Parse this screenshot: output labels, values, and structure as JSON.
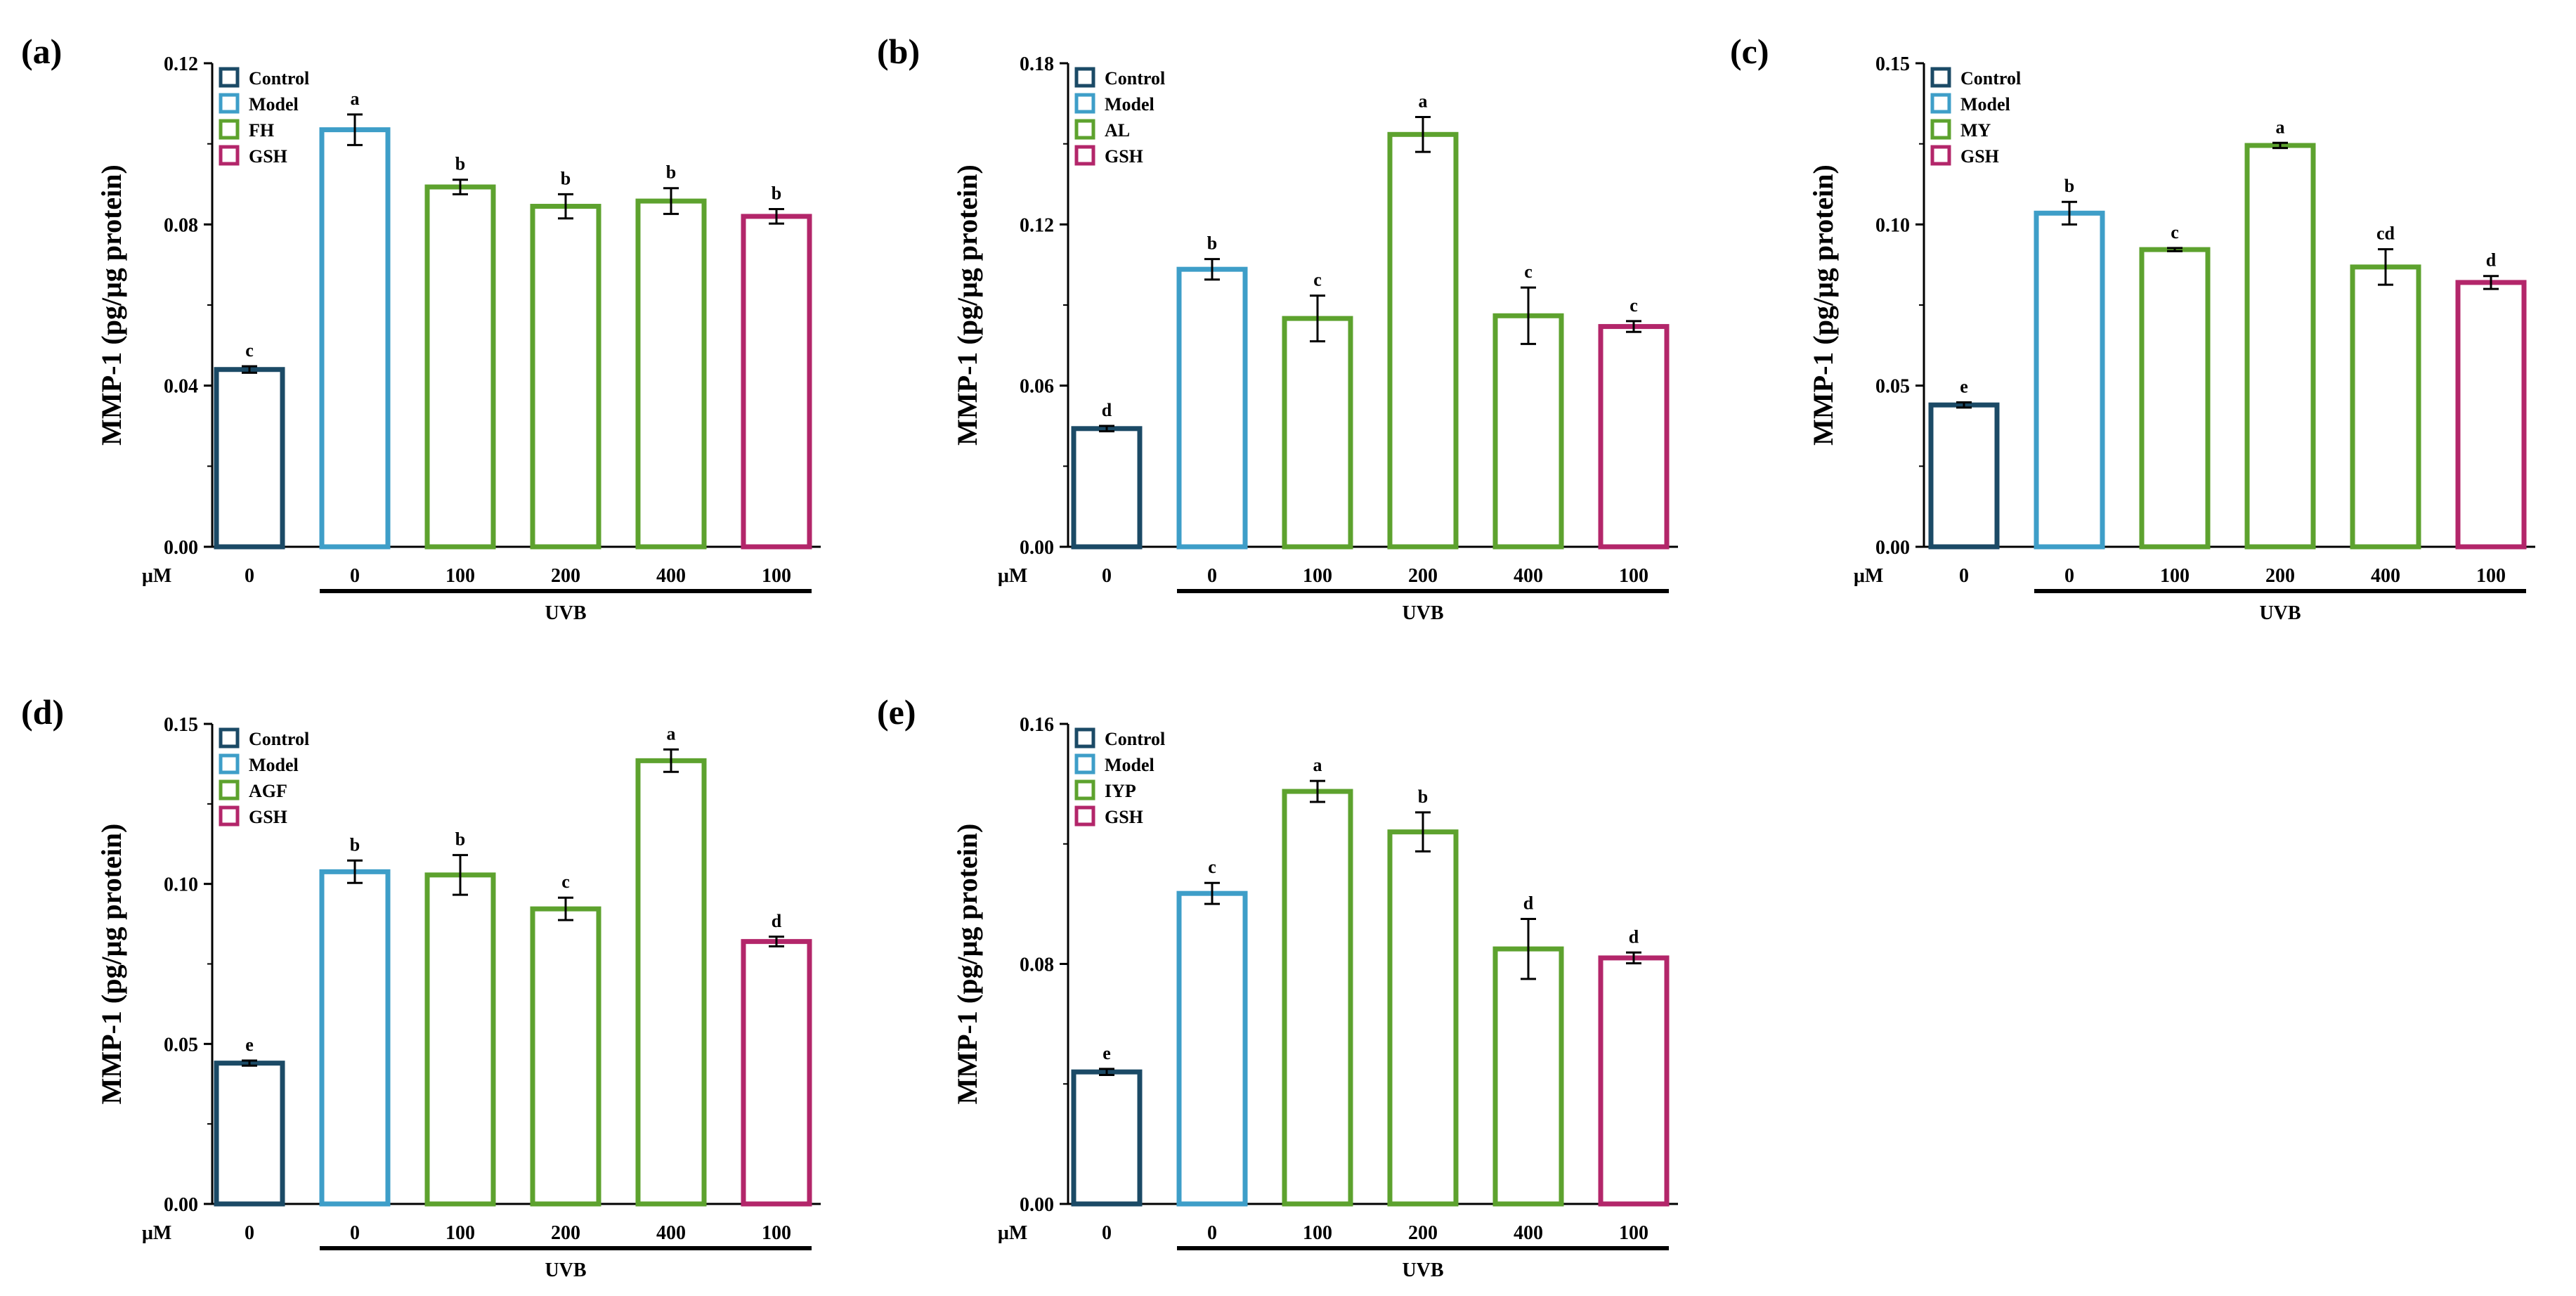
{
  "figure": {
    "dose_unit": "μM",
    "treatment_label": "UVB"
  },
  "chart_data": [
    {
      "type": "bar",
      "panel_label": "(a)",
      "ylabel": "MMP-1 (pg/μg protein)",
      "ylim": [
        0,
        0.12
      ],
      "yticks": [
        "0.00",
        "0.04",
        "0.08",
        "0.12"
      ],
      "categories": [
        "0",
        "0",
        "100",
        "200",
        "400",
        "100"
      ],
      "groups": [
        "Control",
        "Model",
        "FH",
        "FH",
        "FH",
        "GSH"
      ],
      "values": [
        0.044,
        0.1035,
        0.0893,
        0.0845,
        0.0858,
        0.082
      ],
      "errors": [
        0.0008,
        0.0038,
        0.0018,
        0.003,
        0.0032,
        0.0018
      ],
      "significance": [
        "c",
        "a",
        "b",
        "b",
        "b",
        "b"
      ],
      "legend": [
        {
          "label": "Control",
          "color": "#1b4a66"
        },
        {
          "label": "Model",
          "color": "#3e9ec8"
        },
        {
          "label": "FH",
          "color": "#5da22e"
        },
        {
          "label": "GSH",
          "color": "#b3266a"
        }
      ]
    },
    {
      "type": "bar",
      "panel_label": "(b)",
      "ylabel": "MMP-1 (pg/μg protein)",
      "ylim": [
        0,
        0.18
      ],
      "yticks": [
        "0.00",
        "0.06",
        "0.12",
        "0.18"
      ],
      "categories": [
        "0",
        "0",
        "100",
        "200",
        "400",
        "100"
      ],
      "groups": [
        "Control",
        "Model",
        "AL",
        "AL",
        "AL",
        "GSH"
      ],
      "values": [
        0.044,
        0.1033,
        0.085,
        0.1535,
        0.086,
        0.082
      ],
      "errors": [
        0.001,
        0.0038,
        0.0085,
        0.0065,
        0.0105,
        0.002
      ],
      "significance": [
        "d",
        "b",
        "c",
        "a",
        "c",
        "c"
      ],
      "legend": [
        {
          "label": "Control",
          "color": "#1b4a66"
        },
        {
          "label": "Model",
          "color": "#3e9ec8"
        },
        {
          "label": "AL",
          "color": "#5da22e"
        },
        {
          "label": "GSH",
          "color": "#b3266a"
        }
      ]
    },
    {
      "type": "bar",
      "panel_label": "(c)",
      "ylabel": "MMP-1 (pg/μg protein)",
      "ylim": [
        0,
        0.15
      ],
      "yticks": [
        "0.00",
        "0.05",
        "0.10",
        "0.15"
      ],
      "categories": [
        "0",
        "0",
        "100",
        "200",
        "400",
        "100"
      ],
      "groups": [
        "Control",
        "Model",
        "MY",
        "MY",
        "MY",
        "GSH"
      ],
      "values": [
        0.044,
        0.1035,
        0.0922,
        0.1245,
        0.0868,
        0.082
      ],
      "errors": [
        0.0008,
        0.0035,
        0.0005,
        0.0008,
        0.0055,
        0.002
      ],
      "significance": [
        "e",
        "b",
        "c",
        "a",
        "cd",
        "d"
      ],
      "legend": [
        {
          "label": "Control",
          "color": "#1b4a66"
        },
        {
          "label": "Model",
          "color": "#3e9ec8"
        },
        {
          "label": "MY",
          "color": "#5da22e"
        },
        {
          "label": "GSH",
          "color": "#b3266a"
        }
      ]
    },
    {
      "type": "bar",
      "panel_label": "(d)",
      "ylabel": "MMP-1 (pg/μg protein)",
      "ylim": [
        0,
        0.15
      ],
      "yticks": [
        "0.00",
        "0.05",
        "0.10",
        "0.15"
      ],
      "categories": [
        "0",
        "0",
        "100",
        "200",
        "400",
        "100"
      ],
      "groups": [
        "Control",
        "Model",
        "AGF",
        "AGF",
        "AGF",
        "GSH"
      ],
      "values": [
        0.044,
        0.1038,
        0.1028,
        0.0922,
        0.1385,
        0.082
      ],
      "errors": [
        0.0008,
        0.0035,
        0.0062,
        0.0035,
        0.0035,
        0.0015
      ],
      "significance": [
        "e",
        "b",
        "b",
        "c",
        "a",
        "d"
      ],
      "legend": [
        {
          "label": "Control",
          "color": "#1b4a66"
        },
        {
          "label": "Model",
          "color": "#3e9ec8"
        },
        {
          "label": "AGF",
          "color": "#5da22e"
        },
        {
          "label": "GSH",
          "color": "#b3266a"
        }
      ]
    },
    {
      "type": "bar",
      "panel_label": "(e)",
      "ylabel": "MMP-1 (pg/μg protein)",
      "ylim": [
        0,
        0.16
      ],
      "yticks": [
        "0.00",
        "0.08",
        "0.16"
      ],
      "categories": [
        "0",
        "0",
        "100",
        "200",
        "400",
        "100"
      ],
      "groups": [
        "Control",
        "Model",
        "IYP",
        "IYP",
        "IYP",
        "GSH"
      ],
      "values": [
        0.044,
        0.1035,
        0.1375,
        0.124,
        0.085,
        0.082
      ],
      "errors": [
        0.001,
        0.0035,
        0.0035,
        0.0065,
        0.01,
        0.0018
      ],
      "significance": [
        "e",
        "c",
        "a",
        "b",
        "d",
        "d"
      ],
      "legend": [
        {
          "label": "Control",
          "color": "#1b4a66"
        },
        {
          "label": "Model",
          "color": "#3e9ec8"
        },
        {
          "label": "IYP",
          "color": "#5da22e"
        },
        {
          "label": "GSH",
          "color": "#b3266a"
        }
      ]
    }
  ]
}
